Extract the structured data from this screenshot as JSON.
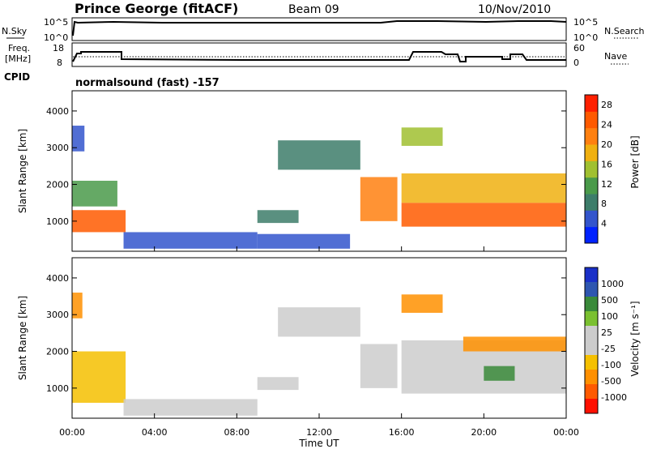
{
  "header": {
    "station": "Prince George (fitACF)",
    "beam": "Beam 09",
    "date": "10/Nov/2010"
  },
  "noise_panel": {
    "left_label": "N.Sky",
    "right_label": "N.Search",
    "top_tick": "10^5",
    "bottom_tick": "10^0"
  },
  "freq_panel": {
    "left_label_line1": "Freq.",
    "left_label_line2": "[MHz]",
    "left_ticks": [
      "18",
      "8"
    ],
    "right_label": "Nave",
    "right_ticks": [
      "60",
      "0"
    ]
  },
  "cpid": {
    "label": "CPID",
    "program": "normalsound (fast) -157"
  },
  "colors": {
    "power_scale": [
      "#0022ff",
      "#3355cc",
      "#3d7d6a",
      "#4a9a4a",
      "#a0c030",
      "#f0b010",
      "#ff8010",
      "#ff5a00",
      "#ff2000"
    ],
    "velocity_scale": [
      "#1a30c8",
      "#2e56b0",
      "#3a8a3a",
      "#7ac030",
      "#cccccc",
      "#cccccc",
      "#f5c000",
      "#ff9000",
      "#ff5a00",
      "#ff1000"
    ]
  },
  "chart_data": [
    {
      "type": "heatmap",
      "name": "power",
      "ylabel": "Slant Range [km]",
      "xlabel": "",
      "y_ticks": [
        "1000",
        "2000",
        "3000",
        "4000"
      ],
      "ylim": [
        180,
        4550
      ],
      "colorbar_label": "Power [dB]",
      "colorbar_ticks": [
        "4",
        "8",
        "12",
        "16",
        "20",
        "24",
        "28"
      ],
      "colorbar_range": [
        0,
        30
      ],
      "regions": [
        {
          "t": [
            0.0,
            2.6
          ],
          "r": [
            700,
            1300
          ],
          "v": 26
        },
        {
          "t": [
            0.0,
            2.2
          ],
          "r": [
            1400,
            2100
          ],
          "v": 12
        },
        {
          "t": [
            0.0,
            0.6
          ],
          "r": [
            2900,
            3600
          ],
          "v": 6
        },
        {
          "t": [
            2.5,
            9.0
          ],
          "r": [
            250,
            700
          ],
          "v": 6
        },
        {
          "t": [
            9.0,
            11.0
          ],
          "r": [
            950,
            1300
          ],
          "v": 8
        },
        {
          "t": [
            9.0,
            13.5
          ],
          "r": [
            250,
            650
          ],
          "v": 6
        },
        {
          "t": [
            10.0,
            14.0
          ],
          "r": [
            2400,
            3200
          ],
          "v": 8
        },
        {
          "t": [
            14.0,
            15.8
          ],
          "r": [
            1000,
            2200
          ],
          "v": 20
        },
        {
          "t": [
            16.0,
            24.0
          ],
          "r": [
            850,
            1500
          ],
          "v": 24
        },
        {
          "t": [
            16.0,
            24.0
          ],
          "r": [
            1500,
            2300
          ],
          "v": 18
        },
        {
          "t": [
            16.0,
            18.0
          ],
          "r": [
            3050,
            3550
          ],
          "v": 15
        }
      ]
    },
    {
      "type": "heatmap",
      "name": "velocity",
      "ylabel": "Slant Range [km]",
      "xlabel": "Time UT",
      "x_ticks": [
        "00:00",
        "04:00",
        "08:00",
        "12:00",
        "16:00",
        "20:00",
        "00:00"
      ],
      "xlim": [
        0,
        24
      ],
      "y_ticks": [
        "1000",
        "2000",
        "3000",
        "4000"
      ],
      "ylim": [
        180,
        4550
      ],
      "colorbar_label": "Velocity [m s⁻¹]",
      "colorbar_ticks": [
        "1000",
        "500",
        "100",
        "25",
        "-25",
        "-100",
        "-500",
        "-1000"
      ],
      "regions": [
        {
          "t": [
            0.0,
            2.6
          ],
          "r": [
            600,
            2000
          ],
          "v": -80
        },
        {
          "t": [
            0.0,
            0.5
          ],
          "r": [
            2900,
            3600
          ],
          "v": -300
        },
        {
          "t": [
            2.5,
            9.0
          ],
          "r": [
            250,
            700
          ],
          "v": 10
        },
        {
          "t": [
            9.0,
            11.0
          ],
          "r": [
            950,
            1300
          ],
          "v": 10
        },
        {
          "t": [
            10.0,
            14.0
          ],
          "r": [
            2400,
            3200
          ],
          "v": 5
        },
        {
          "t": [
            14.0,
            15.8
          ],
          "r": [
            1000,
            2200
          ],
          "v": 5
        },
        {
          "t": [
            16.0,
            24.0
          ],
          "r": [
            850,
            2300
          ],
          "v": 0
        },
        {
          "t": [
            16.0,
            18.0
          ],
          "r": [
            3050,
            3550
          ],
          "v": -400
        },
        {
          "t": [
            19.0,
            24.0
          ],
          "r": [
            2000,
            2400
          ],
          "v": -300
        },
        {
          "t": [
            20.0,
            21.5
          ],
          "r": [
            1200,
            1600
          ],
          "v": 150
        }
      ]
    }
  ]
}
